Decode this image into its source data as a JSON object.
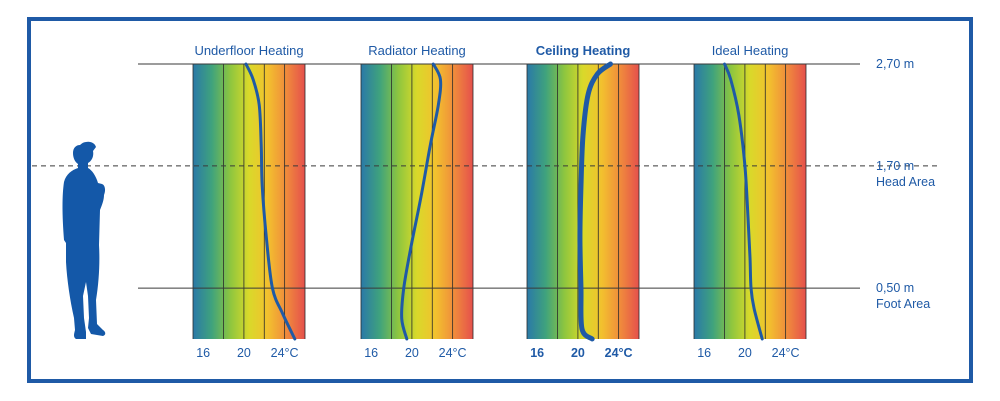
{
  "chart_data": {
    "type": "line",
    "x_unit": "°C",
    "y_unit": "m",
    "x_range": [
      15,
      26
    ],
    "y_range": [
      0,
      2.7
    ],
    "levels": [
      {
        "id": "ceiling",
        "value": 2.7,
        "label": "2,70 m",
        "sublabel": "",
        "style": "solid"
      },
      {
        "id": "head",
        "value": 1.7,
        "label": "1,70 m",
        "sublabel": "Head Area",
        "style": "dashed"
      },
      {
        "id": "foot",
        "value": 0.5,
        "label": "0,50 m",
        "sublabel": "Foot Area",
        "style": "solid"
      }
    ],
    "panels": [
      {
        "name": "underfloor",
        "title": "Underfloor Heating",
        "bold": false,
        "ticks": [
          {
            "value": 16,
            "label": "16"
          },
          {
            "value": 20,
            "label": "20"
          },
          {
            "value": 24,
            "label": "24°C"
          }
        ],
        "profile": [
          [
            25.0,
            0.0
          ],
          [
            23.8,
            0.25
          ],
          [
            22.8,
            0.5
          ],
          [
            22.2,
            1.0
          ],
          [
            21.8,
            1.5
          ],
          [
            21.7,
            1.9
          ],
          [
            21.5,
            2.3
          ],
          [
            20.9,
            2.55
          ],
          [
            20.2,
            2.7
          ]
        ]
      },
      {
        "name": "radiator",
        "title": "Radiator Heating",
        "bold": false,
        "ticks": [
          {
            "value": 16,
            "label": "16"
          },
          {
            "value": 20,
            "label": "20"
          },
          {
            "value": 24,
            "label": "24°C"
          }
        ],
        "profile": [
          [
            19.5,
            0.0
          ],
          [
            19.0,
            0.2
          ],
          [
            19.2,
            0.5
          ],
          [
            19.9,
            0.9
          ],
          [
            20.9,
            1.4
          ],
          [
            21.8,
            1.9
          ],
          [
            22.6,
            2.3
          ],
          [
            22.8,
            2.55
          ],
          [
            22.1,
            2.7
          ]
        ]
      },
      {
        "name": "ceiling",
        "title": "Ceiling Heating",
        "bold": true,
        "ticks": [
          {
            "value": 16,
            "label": "16"
          },
          {
            "value": 20,
            "label": "20"
          },
          {
            "value": 24,
            "label": "24°C"
          }
        ],
        "profile": [
          [
            21.4,
            0.0
          ],
          [
            20.4,
            0.1
          ],
          [
            20.3,
            0.5
          ],
          [
            20.2,
            1.0
          ],
          [
            20.3,
            1.5
          ],
          [
            20.5,
            2.0
          ],
          [
            21.0,
            2.4
          ],
          [
            21.9,
            2.6
          ],
          [
            23.2,
            2.7
          ]
        ]
      },
      {
        "name": "ideal",
        "title": "Ideal Heating",
        "bold": false,
        "ticks": [
          {
            "value": 16,
            "label": "16"
          },
          {
            "value": 20,
            "label": "20"
          },
          {
            "value": 24,
            "label": "24°C"
          }
        ],
        "profile": [
          [
            21.7,
            0.0
          ],
          [
            20.9,
            0.3
          ],
          [
            20.6,
            0.5
          ],
          [
            20.5,
            0.8
          ],
          [
            20.3,
            1.2
          ],
          [
            20.0,
            1.7
          ],
          [
            19.4,
            2.2
          ],
          [
            18.6,
            2.55
          ],
          [
            18.0,
            2.7
          ]
        ]
      }
    ]
  },
  "colors": {
    "frame": "#1f5aa6",
    "curve": "#1f5aa6",
    "line": "#3a3a3a",
    "figure": "#1458a8",
    "gradient": [
      "#2a79a8",
      "#3fa27d",
      "#8dc63f",
      "#d9d92a",
      "#f2c12e",
      "#f08b3c",
      "#e5504c"
    ]
  },
  "figure": {
    "icon": "person-silhouette-icon"
  }
}
